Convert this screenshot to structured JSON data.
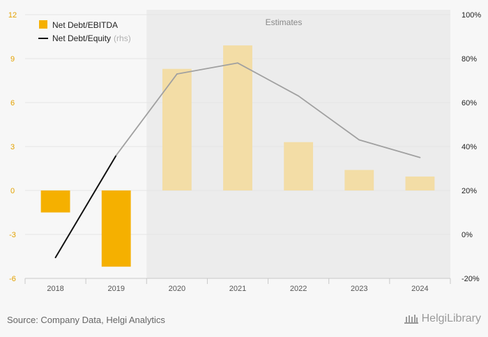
{
  "chart_data": {
    "type": "bar",
    "categories": [
      "2018",
      "2019",
      "2020",
      "2021",
      "2022",
      "2023",
      "2024"
    ],
    "series": [
      {
        "name": "Net Debt/EBITDA",
        "type": "bar",
        "axis": "left",
        "values": [
          -1.5,
          -5.2,
          8.3,
          9.9,
          3.3,
          1.4,
          0.95
        ]
      },
      {
        "name": "Net Debt/Equity",
        "type": "line",
        "axis": "right",
        "values": [
          -10.5,
          36,
          73,
          78,
          63,
          43,
          35
        ]
      }
    ],
    "left_axis": {
      "ylim": [
        -6,
        12
      ],
      "ticks": [
        "-6",
        "-3",
        "0",
        "3",
        "6",
        "9",
        "12"
      ],
      "tick_values": [
        -6,
        -3,
        0,
        3,
        6,
        9,
        12
      ]
    },
    "right_axis": {
      "ylim": [
        -20,
        100
      ],
      "ticks": [
        "-20%",
        "0%",
        "20%",
        "40%",
        "60%",
        "80%",
        "100%"
      ],
      "tick_values": [
        -20,
        0,
        20,
        40,
        60,
        80,
        100
      ]
    },
    "legend": {
      "position": "top-left",
      "items": [
        {
          "label": "Net Debt/EBITDA",
          "suffix": ""
        },
        {
          "label": "Net Debt/Equity",
          "suffix": "(rhs)"
        }
      ]
    },
    "estimates_label": "Estimates",
    "estimates_from_index": 1.5,
    "first_estimate_index": 2,
    "colors": {
      "bar_actual": "#f5b000",
      "bar_estimate": "#f3dda6",
      "line_actual": "#111111",
      "line_estimate": "#a0a0a0",
      "left_tick": "#e3a100",
      "right_tick": "#222222",
      "estimate_band": "#ececec",
      "grid": "#e4e4e4"
    }
  },
  "footer": {
    "source": "Source: Company Data, Helgi Analytics",
    "logo_text": "HelgiLibrary"
  }
}
